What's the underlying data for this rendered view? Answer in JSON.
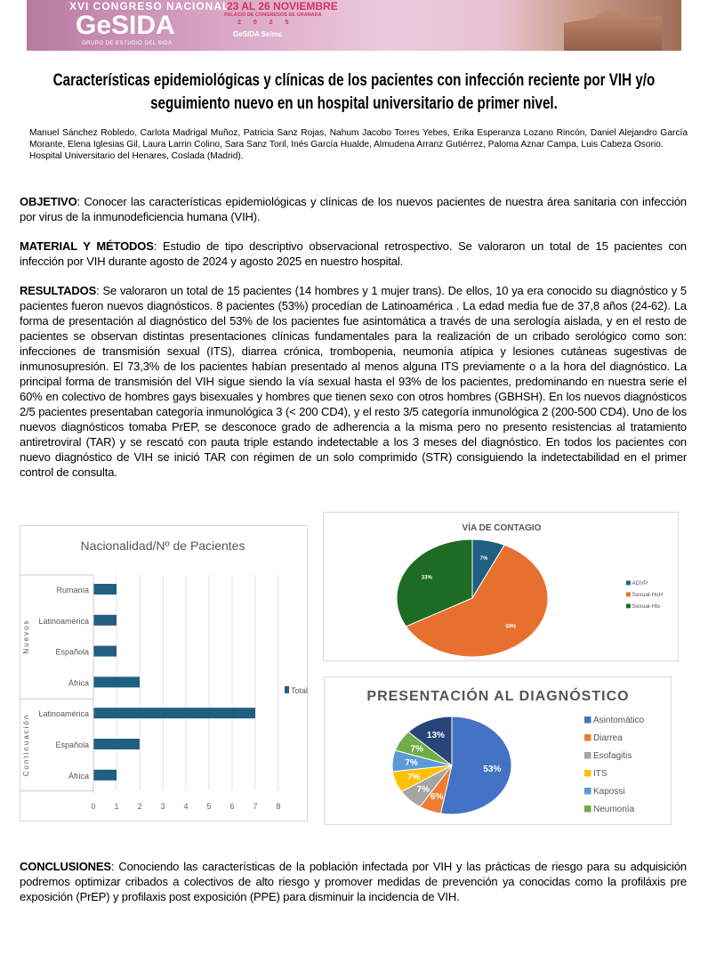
{
  "banner": {
    "line1": "XVI CONGRESO NACIONAL",
    "logo": "GeSIDA",
    "subtitle": "GRUPO DE ESTUDIO DEL SIDA",
    "dates": "23 AL 26 NOVIEMBRE",
    "venue": "PALACIO DE CONGRESOS DE GRANADA",
    "year": "2 0 2 5",
    "sponsors": "GeSIDA  Seimc"
  },
  "title": "Características epidemiológicas y clínicas de los pacientes con infección reciente por VIH y/o seguimiento nuevo en un hospital universitario de primer nivel.",
  "authors": "Manuel Sánchez Robledo, Carlota Madrigal Muñoz, Patricia Sanz Rojas, Nahum Jacobo Torres Yebes, Erika Esperanza Lozano Rincón, Daniel Alejandro García Morante, Elena Iglesias Gil, Laura Larrin Colino, Sara Sanz Toril, Inés García Hualde, Almudena Arranz Gutiérrez, Paloma Aznar Campa, Luis Cabeza Osorio.",
  "affiliation": "Hospital Universitario del Henares, Coslada (Madrid).",
  "sections": {
    "objetivo": {
      "label": "OBJETIVO",
      "text": ": Conocer las características epidemiológicas y clínicas de los nuevos pacientes de nuestra área sanitaria con infección por virus de la inmunodeficiencia humana (VIH)."
    },
    "metodos": {
      "label": "MATERIAL Y MÉTODOS",
      "text": ": Estudio de tipo descriptivo observacional retrospectivo. Se valoraron un total de 15 pacientes con infección por VIH durante agosto de 2024 y agosto 2025 en nuestro hospital."
    },
    "resultados": {
      "label": "RESULTADOS",
      "text": ": Se valoraron un total de 15 pacientes (14 hombres y 1 mujer trans). De ellos, 10 ya era conocido su diagnóstico y 5 pacientes fueron nuevos diagnósticos. 8 pacientes (53%) procedían de Latinoamérica . La edad media fue de 37,8 años (24-62). La forma de presentación al diagnóstico del 53% de los pacientes fue asintomática a través de una serología aislada, y en el resto de pacientes se observan distintas presentaciones clínicas fundamentales para la realización de un cribado serológico como son: infecciones de transmisión sexual (ITS), diarrea crónica, trombopenia, neumonía atípica y lesiones cutáneas sugestivas de inmunosupresión. El 73,3% de los pacientes habían presentado al menos alguna ITS previamente o a la hora del diagnóstico. La principal forma de transmisión del VIH sigue siendo la vía sexual hasta el 93% de los pacientes, predominando en nuestra serie el 60% en colectivo de hombres gays bisexuales y hombres que tienen sexo con otros hombres (GBHSH). En los nuevos diagnósticos 2/5 pacientes presentaban categoría inmunológica 3 (< 200 CD4), y el resto 3/5 categoría inmunológica 2 (200-500 CD4). Uno de los nuevos diagnósticos tomaba PrEP, se desconoce grado de adherencia a la misma pero no presento resistencias al tratamiento antiretroviral (TAR) y se rescató con pauta triple estando indetectable a los 3 meses del diagnóstico. En todos los pacientes con nuevo diagnóstico de VIH se inició TAR con régimen de un solo comprimido (STR) consiguiendo la indetectabilidad en el primer control de consulta."
    },
    "conclusiones": {
      "label": "CONCLUSIONES",
      "text": ": Conociendo las características de la población infectada por VIH y las prácticas de riesgo para su adquisición podremos optimizar cribados a colectivos de alto riesgo y promover medidas de prevención ya conocidas como la profiláxis pre exposición (PrEP) y profilaxis post exposición (PPE) para disminuir la incidencia de VIH."
    }
  },
  "chart_data": [
    {
      "type": "bar",
      "orientation": "horizontal",
      "title": "Nacionalidad/Nº de Pacientes",
      "groups": [
        {
          "name": "Nuevos",
          "categories": [
            "Rumanía",
            "Latinoamérica",
            "Española",
            "África"
          ],
          "values": [
            1,
            1,
            1,
            2
          ]
        },
        {
          "name": "Continuación",
          "categories": [
            "Latinoamérica",
            "Española",
            "África"
          ],
          "values": [
            7,
            2,
            1
          ]
        }
      ],
      "series_name": "Total",
      "xlim": [
        0,
        8
      ],
      "ticks": [
        "0",
        "1",
        "2",
        "3",
        "4",
        "5",
        "6",
        "7",
        "8"
      ],
      "grid": true,
      "legend": "right",
      "color": "#1f5f7f"
    },
    {
      "type": "pie",
      "title": "VÍA DE CONTAGIO",
      "labels": [
        "ADVP",
        "Sexual-HsH",
        "Sexual-Htx"
      ],
      "values": [
        7,
        60,
        33
      ],
      "data_labels": [
        "7%",
        "60%",
        "33%"
      ],
      "colors": [
        "#1f5f7f",
        "#e8702f",
        "#1e6b24"
      ],
      "legend": "right"
    },
    {
      "type": "pie",
      "title": "PRESENTACIÓN AL DIAGNÓSTICO",
      "labels": [
        "Asintomático",
        "Diarrea",
        "Esofagitis",
        "ITS",
        "Kapossi",
        "Neumonía",
        ""
      ],
      "values": [
        53,
        6,
        7,
        7,
        7,
        7,
        13
      ],
      "data_labels": [
        "53%",
        "6%",
        "7%",
        "7%",
        "7%",
        "7%",
        "13%"
      ],
      "colors": [
        "#4472c4",
        "#ed7d31",
        "#a5a5a5",
        "#ffc000",
        "#5b9bd5",
        "#70ad47",
        "#264478"
      ],
      "legend": "right"
    }
  ]
}
